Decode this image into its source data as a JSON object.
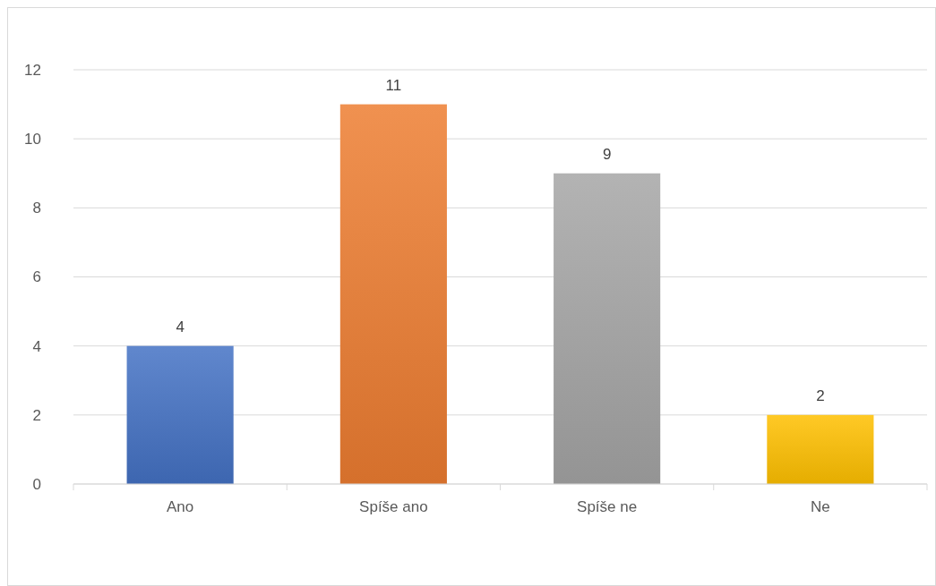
{
  "chart_data": {
    "type": "bar",
    "categories": [
      "Ano",
      "Spíše ano",
      "Spíše ne",
      "Ne"
    ],
    "values": [
      4,
      11,
      9,
      2
    ],
    "colors": [
      "#4472c4",
      "#ed7d31",
      "#a5a5a5",
      "#ffc000"
    ],
    "ylim": [
      0,
      12
    ],
    "yticks": [
      0,
      2,
      4,
      6,
      8,
      10,
      12
    ],
    "grid": "y",
    "data_labels": true
  }
}
